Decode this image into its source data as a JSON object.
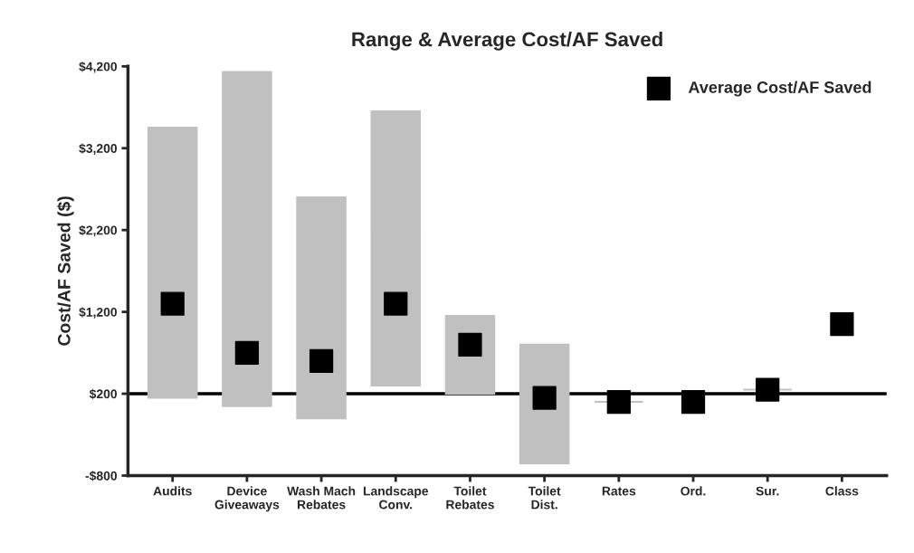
{
  "chart_data": {
    "type": "bar",
    "title": "Range & Average Cost/AF Saved",
    "ylabel": "Cost/AF Saved ($)",
    "categories": [
      "Audits",
      "Device\nGiveaways",
      "Wash Mach\nRebates",
      "Landscape\nConv.",
      "Toilet\nRebates",
      "Toilet\nDist.",
      "Rates",
      "Ord.",
      "Sur.",
      "Class"
    ],
    "series": [
      {
        "color": "#c0c0c0",
        "base": [
          150,
          50,
          -100,
          300,
          200,
          -650,
          100,
          null,
          250,
          null
        ],
        "values": [
          3300,
          4080,
          2700,
          3350,
          950,
          1450,
          0,
          null,
          0,
          null
        ]
      },
      {
        "type": "scatter",
        "name": "Average Cost/AF Saved",
        "color": "#000000",
        "marker": "square",
        "x": [
          "Audits",
          "Device\nGiveaways",
          "Wash Mach\nRebates",
          "Landscape\nConv.",
          "Toilet\nRebates",
          "Toilet\nDist.",
          "Rates",
          "Ord.",
          "Sur.",
          "Class"
        ],
        "values": [
          1300,
          700,
          600,
          1300,
          800,
          150,
          100,
          100,
          250,
          1050
        ]
      }
    ],
    "ylim": [
      -800,
      4200
    ],
    "yticks": [
      {
        "value": -800,
        "label": "-$800"
      },
      {
        "value": 200,
        "label": "$200"
      },
      {
        "value": 1200,
        "label": "$1,200"
      },
      {
        "value": 2200,
        "label": "$2,200"
      },
      {
        "value": 3200,
        "label": "$3,200"
      },
      {
        "value": 4200,
        "label": "$4,200"
      }
    ],
    "ref_lines": [
      {
        "axis": "y",
        "value": 200,
        "color": "#000000",
        "line_style": "solid"
      }
    ],
    "grid": false,
    "legend": "top right"
  }
}
